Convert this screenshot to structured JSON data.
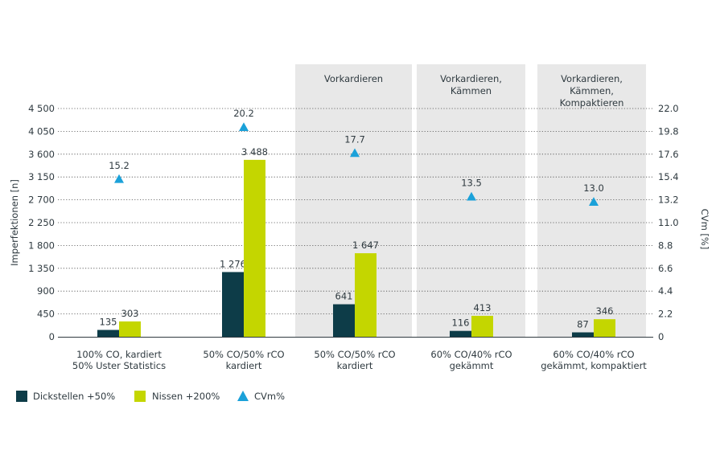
{
  "chart_data": {
    "type": "bar",
    "ylabel_left": "Imperfektionen [n]",
    "ylabel_right": "CVm [%]",
    "ylim_left": [
      0,
      4500
    ],
    "ylim_right": [
      0,
      22.0
    ],
    "yticks_left": [
      "0",
      "450",
      "900",
      "1 350",
      "1 800",
      "2 250",
      "2 700",
      "3 150",
      "3 600",
      "4 050",
      "4 500"
    ],
    "yticks_right": [
      "0",
      "2.2",
      "4.4",
      "6.6",
      "8.8",
      "11.0",
      "13.2",
      "15.4",
      "17.6",
      "19.8",
      "22.0"
    ],
    "categories": [
      [
        "100% CO, kardiert",
        "50% Uster Statistics"
      ],
      [
        "50% CO/50% rCO",
        "kardiert"
      ],
      [
        "50% CO/50% rCO",
        "kardiert"
      ],
      [
        "60% CO/40% rCO",
        "gekämmt"
      ],
      [
        "60% CO/40% rCO",
        "gekämmt, kompaktiert"
      ]
    ],
    "process_headers": [
      [],
      [],
      [
        "Vorkardieren"
      ],
      [
        "Vorkardieren,",
        "Kämmen"
      ],
      [
        "Vorkardieren,",
        "Kämmen,",
        "Kompaktieren"
      ]
    ],
    "series": [
      {
        "name": "Dickstellen +50%",
        "values": [
          135,
          1276,
          641,
          116,
          87
        ],
        "labels": [
          "135",
          "1 276",
          "641",
          "116",
          "87"
        ],
        "color": "#0d3c48"
      },
      {
        "name": "Nissen +200%",
        "values": [
          303,
          3488,
          1647,
          413,
          346
        ],
        "labels": [
          "303",
          "3 488",
          "1 647",
          "413",
          "346"
        ],
        "color": "#c4d600"
      },
      {
        "name": "CVm%",
        "values": [
          15.2,
          20.2,
          17.7,
          13.5,
          13.0
        ],
        "labels": [
          "15.2",
          "20.2",
          "17.7",
          "13.5",
          "13.0"
        ],
        "color": "#1ba1d9",
        "axis": "right",
        "marker": "triangle"
      }
    ],
    "grid": true,
    "grid_style": "dotted",
    "legend_position": "bottom-left",
    "panel_color": "#e8e8e8"
  }
}
